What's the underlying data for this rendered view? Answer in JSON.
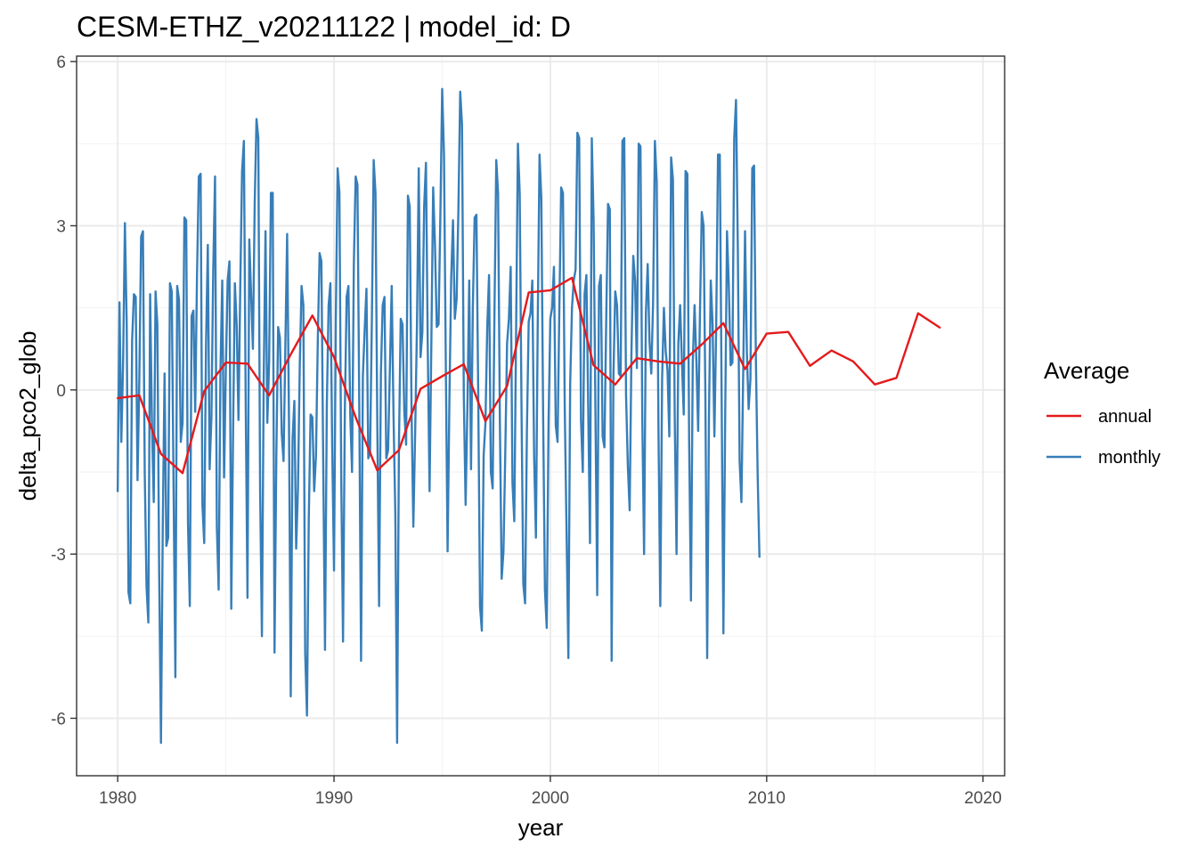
{
  "chart_data": {
    "type": "line",
    "title": "CESM-ETHZ_v20211122 | model_id: D",
    "xlabel": "year",
    "ylabel": "delta_pco2_glob",
    "xlim": [
      1978.1,
      2021.0
    ],
    "ylim": [
      -7.05,
      6.1
    ],
    "x_ticks": [
      1980,
      1990,
      2000,
      2010,
      2020
    ],
    "x_tick_labels": [
      "1980",
      "1990",
      "2000",
      "2010",
      "2020"
    ],
    "y_ticks": [
      -6,
      -3,
      0,
      3,
      6
    ],
    "y_tick_labels": [
      "-6",
      "-3",
      "0",
      "3",
      "6"
    ],
    "grid": true,
    "legend": {
      "title": "Average",
      "position": "right",
      "entries": [
        {
          "name": "annual",
          "color": "#e41a1c"
        },
        {
          "name": "monthly",
          "color": "#377eb8"
        }
      ]
    },
    "series": [
      {
        "name": "monthly",
        "color": "#377eb8",
        "x_start": 1980.0,
        "x_step": 0.0833333,
        "values": [
          -1.85,
          1.6,
          -0.95,
          0.5,
          3.05,
          1.2,
          -3.7,
          -3.9,
          0.9,
          1.75,
          1.7,
          -1.65,
          0.2,
          2.8,
          2.9,
          -1.5,
          -3.6,
          -4.25,
          1.75,
          -0.6,
          -2.05,
          1.8,
          1.2,
          -3.3,
          -6.45,
          -2.5,
          0.3,
          -2.85,
          -2.7,
          1.95,
          1.8,
          -1.8,
          -5.25,
          1.9,
          1.65,
          -0.95,
          -0.6,
          3.15,
          3.1,
          -2.45,
          -3.95,
          1.35,
          1.45,
          -0.4,
          2.1,
          3.9,
          3.95,
          -2.1,
          -2.8,
          0.85,
          2.65,
          -1.45,
          -0.5,
          2.2,
          3.9,
          -2.5,
          -3.65,
          0.35,
          2.0,
          -1.6,
          0.4,
          2.0,
          2.35,
          -4.0,
          -0.8,
          1.95,
          1.2,
          -0.55,
          1.9,
          4.0,
          4.55,
          -0.2,
          -3.8,
          2.75,
          1.75,
          0.75,
          3.4,
          4.95,
          4.6,
          -1.8,
          -4.5,
          0.2,
          2.9,
          -0.6,
          0.5,
          3.6,
          3.6,
          -4.8,
          -1.2,
          1.15,
          0.95,
          -0.8,
          -1.3,
          0.8,
          2.85,
          -0.5,
          -5.6,
          -0.9,
          -0.2,
          -2.9,
          -1.8,
          0.45,
          1.9,
          1.55,
          -4.8,
          -5.95,
          -2.35,
          -0.45,
          -0.5,
          -1.85,
          -1.2,
          0.9,
          2.5,
          2.35,
          -1.3,
          -4.75,
          -0.3,
          1.55,
          1.95,
          -1.05,
          -3.3,
          1.3,
          4.05,
          3.6,
          -1.6,
          -4.6,
          -0.4,
          1.7,
          1.9,
          -0.45,
          -1.5,
          2.3,
          3.9,
          3.75,
          -0.25,
          -4.95,
          0.25,
          1.1,
          1.85,
          -1.25,
          -1.15,
          1.3,
          4.2,
          3.6,
          -0.6,
          -3.95,
          0.3,
          1.55,
          1.7,
          -1.25,
          -1.1,
          0.4,
          1.9,
          -0.45,
          -2.25,
          -6.45,
          -1.05,
          1.3,
          1.2,
          -0.4,
          -1.0,
          3.55,
          3.35,
          -0.35,
          -2.5,
          -0.8,
          1.15,
          4.05,
          0.6,
          1.05,
          3.35,
          4.15,
          0.8,
          -1.85,
          0.9,
          3.7,
          2.65,
          1.15,
          1.2,
          3.2,
          5.5,
          4.3,
          0.5,
          -2.95,
          -0.2,
          2.05,
          3.1,
          1.3,
          1.65,
          3.3,
          5.45,
          4.85,
          -0.1,
          -2.1,
          -0.3,
          2.0,
          -1.45,
          1.5,
          3.15,
          3.2,
          -0.1,
          -3.95,
          -4.4,
          -1.2,
          -0.6,
          1.15,
          2.1,
          -1.5,
          -1.8,
          1.4,
          4.2,
          3.6,
          -0.55,
          -3.45,
          -2.95,
          -1.15,
          0.85,
          1.3,
          2.25,
          -1.7,
          -2.4,
          1.05,
          4.5,
          3.6,
          -0.3,
          -3.55,
          -3.9,
          -0.75,
          1.25,
          1.4,
          2.0,
          -1.2,
          -2.7,
          1.2,
          4.3,
          3.5,
          -0.45,
          -3.65,
          -4.35,
          -0.6,
          1.3,
          1.5,
          2.25,
          -0.65,
          -0.95,
          1.5,
          3.7,
          3.6,
          -0.35,
          -2.6,
          -4.9,
          0.1,
          1.5,
          2.0,
          2.2,
          4.7,
          4.6,
          -0.55,
          -1.5,
          1.75,
          2.1,
          -0.3,
          -2.8,
          4.6,
          3.1,
          -0.35,
          -3.75,
          1.9,
          2.1,
          -0.85,
          -1.05,
          1.3,
          3.4,
          3.3,
          -4.95,
          0.25,
          1.8,
          1.55,
          0.3,
          0.25,
          4.55,
          4.6,
          -0.1,
          -1.4,
          -2.2,
          0.7,
          2.45,
          2.0,
          0.4,
          4.5,
          4.45,
          -0.5,
          -3.0,
          1.4,
          2.3,
          0.9,
          0.3,
          1.6,
          4.55,
          3.8,
          -0.8,
          -3.95,
          0.2,
          1.5,
          0.7,
          0.35,
          -0.85,
          4.25,
          3.85,
          -0.5,
          -3.0,
          0.85,
          1.55,
          0.5,
          -0.45,
          4.0,
          3.95,
          -0.95,
          -3.85,
          0.5,
          1.55,
          0.55,
          -0.75,
          1.4,
          3.25,
          3.0,
          -0.1,
          -4.9,
          -0.45,
          2.0,
          1.2,
          -0.85,
          1.15,
          4.3,
          4.3,
          -0.05,
          -4.45,
          -0.45,
          2.9,
          1.9,
          0.45,
          0.5,
          4.6,
          5.3,
          2.6,
          -1.3,
          -2.05,
          0.35,
          2.9,
          0.7,
          -0.35,
          0.2,
          4.05,
          4.1,
          0.6,
          -1.55,
          -3.05
        ]
      },
      {
        "name": "annual",
        "color": "#e41a1c",
        "x": [
          1980,
          1981,
          1982,
          1983,
          1984,
          1985,
          1986,
          1987,
          1988,
          1989,
          1990,
          1991,
          1992,
          1993,
          1994,
          1995,
          1996,
          1997,
          1998,
          1999,
          2000,
          2001,
          2002,
          2003,
          2004,
          2005,
          2006,
          2007,
          2008,
          2009,
          2010,
          2011,
          2012,
          2013,
          2014,
          2015,
          2016,
          2017,
          2018
        ],
        "values": [
          -0.15,
          -0.1,
          -1.17,
          -1.52,
          -0.02,
          0.5,
          0.48,
          -0.1,
          0.65,
          1.36,
          0.6,
          -0.5,
          -1.47,
          -1.1,
          0.02,
          0.25,
          0.47,
          -0.57,
          0.07,
          1.78,
          1.82,
          2.05,
          0.45,
          0.1,
          0.58,
          0.52,
          0.48,
          0.83,
          1.22,
          0.38,
          1.03,
          1.06,
          0.44,
          0.72,
          0.52,
          0.1,
          0.22,
          1.4,
          1.14
        ]
      }
    ]
  }
}
